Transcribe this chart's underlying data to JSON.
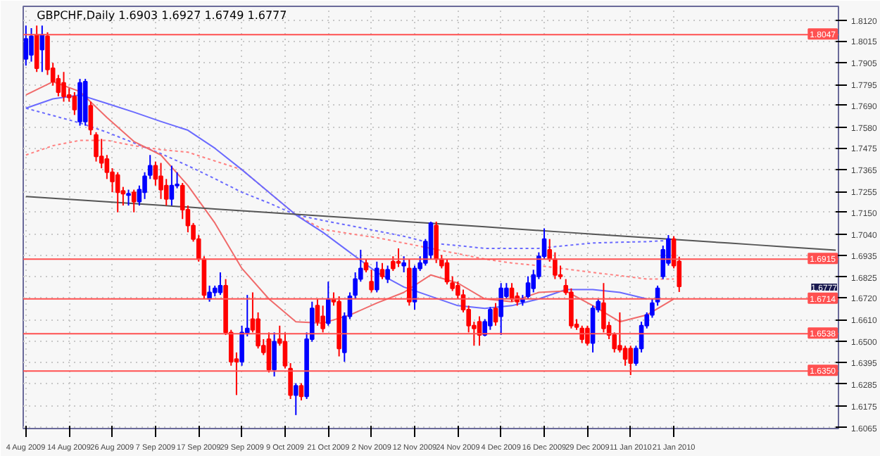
{
  "chart_data": {
    "type": "candlestick",
    "title": "GBPCHF,Daily  1.6903 1.6927 1.6749 1.6777",
    "categories": [
      "4 Aug 2009",
      null,
      null,
      null,
      null,
      null,
      null,
      null,
      "14 Aug 2009",
      null,
      null,
      null,
      null,
      null,
      null,
      null,
      "26 Aug 2009",
      null,
      null,
      null,
      null,
      null,
      null,
      null,
      "7 Sep 2009",
      null,
      null,
      null,
      null,
      null,
      null,
      null,
      "17 Sep 2009",
      null,
      null,
      null,
      null,
      null,
      null,
      null,
      "29 Sep 2009",
      null,
      null,
      null,
      null,
      null,
      null,
      null,
      "9 Oct 2009",
      null,
      null,
      null,
      null,
      null,
      null,
      null,
      "21 Oct 2009",
      null,
      null,
      null,
      null,
      null,
      null,
      null,
      "2 Nov 2009",
      null,
      null,
      null,
      null,
      null,
      null,
      null,
      "12 Nov 2009",
      null,
      null,
      null,
      null,
      null,
      null,
      null,
      "24 Nov 2009",
      null,
      null,
      null,
      null,
      null,
      null,
      null,
      "4 Dec 2009",
      null,
      null,
      null,
      null,
      null,
      null,
      null,
      "16 Dec 2009",
      null,
      null,
      null,
      null,
      null,
      null,
      null,
      "29 Dec 2009",
      null,
      null,
      null,
      null,
      null,
      null,
      null,
      "11 Jan 2010",
      null,
      null,
      null,
      null,
      null,
      null,
      null,
      "21 Jan 2010",
      null,
      null,
      null,
      null,
      null,
      null,
      null,
      null,
      null,
      null,
      null,
      null,
      null,
      null,
      null,
      null,
      null,
      null,
      null,
      null,
      null,
      null,
      null,
      null,
      null,
      null,
      null,
      null,
      null,
      null
    ],
    "ylim": [
      1.606,
      1.819
    ],
    "yticks": [
      {
        "value": 1.812,
        "label": "1.8120"
      },
      1.8015,
      1.7905,
      1.7795,
      {
        "value": 1.769,
        "label": "1.7690"
      },
      {
        "value": 1.758,
        "label": "1.7580"
      },
      1.7475,
      1.7365,
      1.7255,
      {
        "value": 1.715,
        "label": "1.7150"
      },
      {
        "value": 1.704,
        "label": "1.7040"
      },
      1.6935,
      1.6825,
      {
        "value": 1.672,
        "label": "1.6720"
      },
      {
        "value": 1.661,
        "label": "1.6610"
      },
      {
        "value": 1.65,
        "label": "1.6500"
      },
      1.6395,
      1.6285,
      1.6175,
      1.6065
    ],
    "grid": true,
    "series": [
      {
        "type": "line",
        "color": "#ff8080",
        "line_style": "dotted",
        "values": [
          1.744,
          null,
          null,
          null,
          null,
          1.7487,
          null,
          null,
          null,
          null,
          1.7514,
          null,
          null,
          null,
          null,
          1.7514,
          null,
          null,
          null,
          null,
          1.7487,
          null,
          null,
          null,
          null,
          1.7467,
          null,
          null,
          null,
          null,
          1.7454,
          null,
          null,
          null,
          null,
          1.741,
          null,
          null,
          null,
          null,
          1.7366,
          null,
          null,
          null,
          null,
          1.7252,
          null,
          null,
          null,
          null,
          1.7138,
          null,
          null,
          null,
          null,
          1.7065,
          null,
          null,
          null,
          null,
          1.7043,
          null,
          null,
          null,
          null,
          1.7023,
          null,
          null,
          null,
          null,
          1.6996,
          null,
          null,
          null,
          null,
          1.6969,
          null,
          null,
          null,
          null,
          1.6942,
          null,
          null,
          null,
          null,
          1.6915,
          null,
          null,
          null,
          null,
          1.6895,
          null,
          null,
          null,
          null,
          1.6882,
          null,
          null,
          null,
          null,
          1.6865,
          null,
          null,
          null,
          null,
          1.6848,
          null,
          null,
          null,
          null,
          1.6831,
          null,
          null,
          null,
          null,
          1.6814,
          null,
          null,
          null,
          null,
          1.6814,
          null,
          null,
          null,
          null,
          null,
          null,
          null,
          null,
          null,
          null,
          null,
          null,
          null,
          null,
          null,
          null,
          null,
          null,
          null,
          null,
          null,
          null,
          null,
          null,
          null,
          null,
          null,
          null,
          null,
          null
        ]
      },
      {
        "type": "line",
        "color": "#6a6aff",
        "line_style": "dotted",
        "values": [
          1.7676,
          null,
          null,
          null,
          null,
          1.7639,
          null,
          null,
          null,
          null,
          1.7602,
          null,
          null,
          null,
          null,
          1.7555,
          null,
          null,
          null,
          null,
          1.7501,
          null,
          null,
          null,
          null,
          1.7447,
          null,
          null,
          null,
          null,
          1.7386,
          null,
          null,
          null,
          null,
          1.732,
          null,
          null,
          null,
          null,
          1.7252,
          null,
          null,
          null,
          null,
          1.7198,
          null,
          null,
          null,
          null,
          1.7138,
          null,
          null,
          null,
          null,
          1.711,
          null,
          null,
          null,
          null,
          1.7084,
          null,
          null,
          null,
          null,
          1.7057,
          null,
          null,
          null,
          null,
          1.703,
          null,
          null,
          null,
          null,
          1.6996,
          null,
          null,
          null,
          null,
          1.6983,
          null,
          null,
          null,
          null,
          1.6969,
          null,
          null,
          null,
          null,
          1.6969,
          null,
          null,
          null,
          null,
          1.6969,
          null,
          null,
          null,
          null,
          1.6983,
          null,
          null,
          null,
          null,
          1.6996,
          null,
          null,
          null,
          null,
          1.7,
          null,
          null,
          null,
          null,
          1.7003,
          null,
          null,
          null,
          null,
          1.701,
          null,
          null,
          null,
          null,
          null,
          null,
          null,
          null,
          null,
          null,
          null,
          null,
          null,
          null,
          null,
          null,
          null,
          null,
          null,
          null,
          null,
          null,
          null,
          null,
          null,
          null,
          null,
          null,
          null,
          null
        ]
      },
      {
        "type": "line",
        "color": "#6a6aff",
        "line_style": "solid",
        "values": [
          1.7676,
          null,
          null,
          null,
          null,
          1.7723,
          null,
          null,
          null,
          null,
          1.7743,
          null,
          null,
          null,
          null,
          1.77,
          null,
          null,
          null,
          null,
          1.7656,
          null,
          null,
          null,
          null,
          1.7609,
          null,
          null,
          null,
          null,
          1.7565,
          null,
          null,
          null,
          null,
          1.7474,
          null,
          null,
          null,
          null,
          1.7366,
          null,
          null,
          null,
          null,
          1.7252,
          null,
          null,
          null,
          null,
          1.7138,
          null,
          null,
          null,
          null,
          1.705,
          null,
          null,
          null,
          null,
          1.6949,
          null,
          null,
          null,
          null,
          1.6848,
          null,
          null,
          null,
          null,
          1.6774,
          null,
          null,
          null,
          null,
          1.6727,
          null,
          null,
          null,
          null,
          1.668,
          null,
          null,
          null,
          null,
          1.6666,
          null,
          null,
          null,
          null,
          1.668,
          null,
          null,
          null,
          null,
          1.6714,
          null,
          null,
          null,
          null,
          1.6761,
          null,
          null,
          null,
          null,
          1.6761,
          null,
          null,
          null,
          null,
          1.6747,
          null,
          null,
          null,
          null,
          1.6714,
          null,
          null,
          null,
          null,
          null,
          null,
          null,
          null,
          null,
          null,
          null,
          null,
          null,
          null,
          null,
          null,
          null,
          null,
          null,
          null,
          null,
          null,
          null,
          null,
          null,
          null,
          null,
          null,
          null,
          null,
          null,
          null,
          null,
          null,
          null
        ]
      },
      {
        "type": "line",
        "color": "#f06a6a",
        "line_style": "solid",
        "values": [
          1.7743,
          null,
          null,
          null,
          null,
          1.781,
          null,
          null,
          null,
          null,
          1.776,
          null,
          null,
          null,
          null,
          1.7629,
          null,
          null,
          null,
          null,
          1.7508,
          null,
          null,
          null,
          null,
          1.744,
          null,
          null,
          null,
          null,
          1.7286,
          null,
          null,
          null,
          null,
          1.7097,
          null,
          null,
          null,
          null,
          1.6868,
          null,
          null,
          null,
          null,
          1.6714,
          null,
          null,
          null,
          null,
          1.6599,
          null,
          null,
          null,
          null,
          1.6592,
          null,
          null,
          null,
          null,
          1.6633,
          null,
          null,
          null,
          null,
          1.6693,
          null,
          null,
          null,
          null,
          1.6747,
          null,
          null,
          null,
          null,
          1.6835,
          null,
          null,
          null,
          null,
          1.6794,
          null,
          null,
          null,
          null,
          1.6714,
          null,
          null,
          null,
          null,
          1.67,
          null,
          null,
          null,
          null,
          1.6747,
          null,
          null,
          null,
          null,
          1.6754,
          null,
          null,
          null,
          null,
          1.668,
          null,
          null,
          null,
          null,
          1.6599,
          null,
          null,
          null,
          null,
          1.6633,
          null,
          null,
          null,
          null,
          1.6714,
          null,
          null,
          null,
          null,
          null,
          null,
          null,
          null,
          null,
          null,
          null,
          null,
          null,
          null,
          null,
          null,
          null,
          null,
          null,
          null,
          null,
          null,
          null,
          null,
          null,
          null,
          null,
          null,
          null,
          null
        ]
      },
      {
        "type": "line",
        "color": "#555555",
        "line_style": "solid",
        "values": [
          1.7231,
          null,
          null,
          null,
          null,
          1.7222,
          null,
          null,
          null,
          null,
          1.7213,
          null,
          null,
          null,
          null,
          1.7204,
          null,
          null,
          null,
          null,
          1.7195,
          null,
          null,
          null,
          null,
          1.7186,
          null,
          null,
          null,
          null,
          1.7177,
          null,
          null,
          null,
          null,
          1.7168,
          null,
          null,
          null,
          null,
          1.7159,
          null,
          null,
          null,
          null,
          1.715,
          null,
          null,
          null,
          null,
          1.7141,
          null,
          null,
          null,
          null,
          1.7132,
          null,
          null,
          null,
          null,
          1.7123,
          null,
          null,
          null,
          null,
          1.7114,
          null,
          null,
          null,
          null,
          1.7105,
          null,
          null,
          null,
          null,
          1.7096,
          null,
          null,
          null,
          null,
          1.7087,
          null,
          null,
          null,
          null,
          1.7078,
          null,
          null,
          null,
          null,
          1.7068,
          null,
          null,
          null,
          null,
          1.7059,
          null,
          null,
          null,
          null,
          1.705,
          null,
          null,
          null,
          null,
          1.7041,
          null,
          null,
          null,
          null,
          1.7032,
          null,
          null,
          null,
          null,
          1.7023,
          null,
          null,
          null,
          null,
          1.7014,
          null,
          null,
          null,
          null,
          1.7005,
          null,
          null,
          null,
          null,
          1.6996,
          null,
          null,
          null,
          null,
          1.6987,
          null,
          null,
          null,
          null,
          1.6978,
          null,
          null,
          null,
          null,
          1.6969,
          null,
          null,
          null,
          null,
          1.696
        ]
      },
      {
        "type": "candlestick",
        "colors": [
          "#0000ff",
          "#0000ff",
          "#ff0000",
          "#0000ff",
          "#ff0000",
          "#ff0000",
          "#ff0000",
          "#ff0000",
          "#ff0000",
          "#ff0000",
          "#0000ff",
          "#0000ff",
          "#ff0000",
          "#ff0000",
          "#ff0000",
          "#ff0000",
          "#ff0000",
          "#ff0000",
          "#ff0000",
          "#0000ff",
          "#ff0000",
          "#0000ff",
          "#0000ff",
          "#0000ff",
          "#ff0000",
          "#ff0000",
          "#ff0000",
          "#0000ff",
          "#0000ff",
          "#ff0000",
          "#ff0000",
          "#ff0000",
          "#ff0000",
          "#ff0000",
          "#0000ff",
          "#0000ff",
          "#0000ff",
          "#ff0000",
          "#ff0000",
          "#ff0000",
          "#0000ff",
          "#0000ff",
          "#ff0000",
          "#ff0000",
          "#ff0000",
          "#ff0000",
          "#0000ff",
          "#ff0000",
          "#ff0000",
          "#ff0000",
          "#0000ff",
          "#ff0000",
          "#0000ff",
          "#0000ff",
          "#ff0000",
          "#ff0000",
          "#0000ff",
          "#ff0000",
          "#ff0000",
          "#0000ff",
          "#0000ff",
          "#0000ff",
          "#0000ff",
          "#ff0000",
          "#ff0000",
          "#0000ff",
          "#ff0000",
          "#0000ff",
          "#ff0000",
          "#ff0000",
          "#0000ff",
          "#ff0000",
          "#0000ff",
          "#0000ff",
          "#0000ff",
          "#0000ff",
          "#ff0000",
          "#ff0000",
          "#ff0000",
          "#ff0000",
          "#ff0000",
          "#ff0000",
          "#ff0000",
          "#ff0000",
          "#ff0000",
          "#0000ff",
          "#0000ff",
          "#ff0000",
          "#0000ff",
          "#0000ff",
          "#ff0000",
          "#ff0000",
          "#0000ff",
          "#0000ff",
          "#0000ff",
          "#0000ff",
          "#0000ff",
          "#ff0000",
          "#ff0000",
          "#ff0000",
          "#ff0000",
          "#ff0000",
          "#ff0000",
          "#ff0000",
          "#ff0000",
          "#0000ff",
          "#0000ff",
          "#ff0000",
          "#ff0000",
          "#ff0000",
          "#ff0000",
          "#ff0000",
          "#ff0000",
          "#0000ff",
          "#0000ff",
          "#0000ff",
          "#0000ff",
          "#0000ff",
          "#0000ff",
          "#0000ff",
          "#ff0000",
          "#ff0000",
          null,
          null,
          null,
          null,
          null,
          null,
          null,
          null,
          null,
          null,
          null,
          null,
          null,
          null,
          null,
          null,
          null,
          null,
          null,
          null,
          null,
          null,
          null,
          null,
          null,
          null,
          null,
          null,
          null
        ],
        "ohlc": [
          [
            1.7925,
            1.8093,
            1.7891,
            1.8026
          ],
          [
            1.7945,
            1.808,
            1.7911,
            1.8039
          ],
          [
            1.8046,
            1.8093,
            1.7859,
            1.7878
          ],
          [
            1.7972,
            1.8093,
            1.7859,
            1.8046
          ],
          [
            1.8039,
            1.8059,
            1.7844,
            1.7871
          ],
          [
            1.7878,
            1.7905,
            1.779,
            1.781
          ],
          [
            1.7824,
            1.7844,
            1.7736,
            1.7757
          ],
          [
            1.7804,
            1.7859,
            1.7709,
            1.7736
          ],
          [
            1.7743,
            1.7777,
            1.7709,
            1.773
          ],
          [
            1.7736,
            1.7757,
            1.7642,
            1.7669
          ],
          [
            1.7609,
            1.7824,
            1.7588,
            1.7804
          ],
          [
            1.7609,
            1.7824,
            1.7588,
            1.781
          ],
          [
            1.7689,
            1.7709,
            1.7541,
            1.7568
          ],
          [
            1.7541,
            1.7555,
            1.7407,
            1.7433
          ],
          [
            1.7433,
            1.7521,
            1.7373,
            1.74
          ],
          [
            1.742,
            1.744,
            1.7319,
            1.7353
          ],
          [
            1.7353,
            1.7373,
            1.7252,
            1.7306
          ],
          [
            1.7339,
            1.7353,
            1.7151,
            1.7252
          ],
          [
            1.7259,
            1.7279,
            1.7185,
            1.7245
          ],
          [
            1.7238,
            1.7265,
            1.7185,
            1.7245
          ],
          [
            1.7252,
            1.7265,
            1.7151,
            1.7205
          ],
          [
            1.7205,
            1.7286,
            1.7185,
            1.7265
          ],
          [
            1.7252,
            1.7353,
            1.7218,
            1.7333
          ],
          [
            1.7339,
            1.744,
            1.7319,
            1.7386
          ],
          [
            1.7386,
            1.7407,
            1.7286,
            1.7319
          ],
          [
            1.7333,
            1.74,
            1.7218,
            1.7265
          ],
          [
            1.7286,
            1.7319,
            1.7185,
            1.7218
          ],
          [
            1.7218,
            1.7386,
            1.7185,
            1.7286
          ],
          [
            1.7286,
            1.7353,
            1.7272,
            1.7292
          ],
          [
            1.7286,
            1.7299,
            1.7117,
            1.7164
          ],
          [
            1.7164,
            1.7185,
            1.705,
            1.7084
          ],
          [
            1.7084,
            1.7097,
            1.7003,
            1.7016
          ],
          [
            1.7016,
            1.7036,
            1.6902,
            1.6915
          ],
          [
            1.6915,
            1.6929,
            1.6714,
            1.6734
          ],
          [
            1.6714,
            1.6781,
            1.67,
            1.6747
          ],
          [
            1.6747,
            1.6781,
            1.6727,
            1.6767
          ],
          [
            1.6747,
            1.6848,
            1.6734,
            1.6781
          ],
          [
            1.6781,
            1.6814,
            1.6532,
            1.6545
          ],
          [
            1.6545,
            1.6558,
            1.6377,
            1.6397
          ],
          [
            1.6411,
            1.6444,
            1.6229,
            1.6397
          ],
          [
            1.6397,
            1.6579,
            1.6377,
            1.6545
          ],
          [
            1.6545,
            1.6734,
            1.6525,
            1.6565
          ],
          [
            1.6612,
            1.6747,
            1.6545,
            1.6558
          ],
          [
            1.6612,
            1.6646,
            1.6464,
            1.6478
          ],
          [
            1.6478,
            1.6511,
            1.6431,
            1.6444
          ],
          [
            1.6511,
            1.6545,
            1.6343,
            1.6357
          ],
          [
            1.6357,
            1.6545,
            1.6323,
            1.6498
          ],
          [
            1.6511,
            1.6579,
            1.6478,
            1.6491
          ],
          [
            1.6498,
            1.6545,
            1.6363,
            1.6377
          ],
          [
            1.6363,
            1.639,
            1.6209,
            1.6229
          ],
          [
            1.6229,
            1.6289,
            1.6128,
            1.6276
          ],
          [
            1.6276,
            1.6289,
            1.6202,
            1.6222
          ],
          [
            1.6222,
            1.6545,
            1.6209,
            1.6511
          ],
          [
            1.6511,
            1.67,
            1.6498,
            1.6666
          ],
          [
            1.668,
            1.6714,
            1.6579,
            1.6599
          ],
          [
            1.6626,
            1.668,
            1.6545,
            1.6565
          ],
          [
            1.6592,
            1.6801,
            1.6579,
            1.6714
          ],
          [
            1.6714,
            1.6747,
            1.668,
            1.67
          ],
          [
            1.67,
            1.6727,
            1.6424,
            1.6464
          ],
          [
            1.6444,
            1.6646,
            1.6397,
            1.6626
          ],
          [
            1.6626,
            1.6747,
            1.6612,
            1.6727
          ],
          [
            1.6734,
            1.6848,
            1.6714,
            1.6814
          ],
          [
            1.6814,
            1.6962,
            1.6801,
            1.6868
          ],
          [
            1.6895,
            1.6915,
            1.6848,
            1.6861
          ],
          [
            1.6801,
            1.6861,
            1.6747,
            1.6761
          ],
          [
            1.6761,
            1.6902,
            1.6747,
            1.6868
          ],
          [
            1.6861,
            1.6895,
            1.6814,
            1.6828
          ],
          [
            1.6814,
            1.6882,
            1.6794,
            1.6861
          ],
          [
            1.6902,
            1.6929,
            1.6855,
            1.6868
          ],
          [
            1.6902,
            1.6969,
            1.6875,
            1.6895
          ],
          [
            1.6882,
            1.6929,
            1.6848,
            1.6895
          ],
          [
            1.6868,
            1.6915,
            1.668,
            1.67
          ],
          [
            1.67,
            1.6882,
            1.666,
            1.6868
          ],
          [
            1.6868,
            1.6929,
            1.6855,
            1.6895
          ],
          [
            1.6895,
            1.7016,
            1.6882,
            1.7003
          ],
          [
            1.6936,
            1.7104,
            1.6915,
            1.7097
          ],
          [
            1.7084,
            1.7104,
            1.6895,
            1.6915
          ],
          [
            1.6915,
            1.6936,
            1.6868,
            1.6882
          ],
          [
            1.6895,
            1.6915,
            1.6787,
            1.6801
          ],
          [
            1.6794,
            1.6828,
            1.6754,
            1.6767
          ],
          [
            1.6781,
            1.6801,
            1.6714,
            1.6734
          ],
          [
            1.6734,
            1.6761,
            1.6646,
            1.666
          ],
          [
            1.666,
            1.668,
            1.6545,
            1.6579
          ],
          [
            1.6579,
            1.6599,
            1.6478,
            1.6565
          ],
          [
            1.6599,
            1.6626,
            1.6478,
            1.6532
          ],
          [
            1.6532,
            1.6612,
            1.6525,
            1.6599
          ],
          [
            1.6579,
            1.6673,
            1.6558,
            1.666
          ],
          [
            1.6666,
            1.6693,
            1.6579,
            1.6599
          ],
          [
            1.6626,
            1.6794,
            1.6532,
            1.6767
          ],
          [
            1.6727,
            1.6794,
            1.6714,
            1.6767
          ],
          [
            1.6767,
            1.6794,
            1.67,
            1.6714
          ],
          [
            1.6727,
            1.6747,
            1.668,
            1.67
          ],
          [
            1.67,
            1.6734,
            1.668,
            1.6714
          ],
          [
            1.6727,
            1.6828,
            1.6714,
            1.6794
          ],
          [
            1.6767,
            1.6861,
            1.6747,
            1.6835
          ],
          [
            1.6828,
            1.6949,
            1.6814,
            1.6929
          ],
          [
            1.6929,
            1.707,
            1.6915,
            1.7016
          ],
          [
            1.6962,
            1.7016,
            1.6902,
            1.6915
          ],
          [
            1.6915,
            1.6949,
            1.6814,
            1.6835
          ],
          [
            1.6835,
            1.6882,
            1.6814,
            1.6828
          ],
          [
            1.6781,
            1.6814,
            1.6734,
            1.6747
          ],
          [
            1.6747,
            1.6767,
            1.6565,
            1.6579
          ],
          [
            1.6585,
            1.6612,
            1.6558,
            1.6572
          ],
          [
            1.6565,
            1.6579,
            1.6491,
            1.6511
          ],
          [
            1.6565,
            1.6579,
            1.6478,
            1.6491
          ],
          [
            1.6491,
            1.668,
            1.6444,
            1.6666
          ],
          [
            1.666,
            1.6714,
            1.6646,
            1.67
          ],
          [
            1.6693,
            1.6794,
            1.6545,
            1.6565
          ],
          [
            1.6579,
            1.6599,
            1.6511,
            1.6532
          ],
          [
            1.6532,
            1.6545,
            1.6444,
            1.6464
          ],
          [
            1.6478,
            1.6646,
            1.6444,
            1.6458
          ],
          [
            1.6464,
            1.6478,
            1.6377,
            1.6411
          ],
          [
            1.6464,
            1.6478,
            1.633,
            1.639
          ],
          [
            1.639,
            1.6478,
            1.6377,
            1.6464
          ],
          [
            1.6464,
            1.6599,
            1.6444,
            1.6579
          ],
          [
            1.6579,
            1.6646,
            1.6565,
            1.6633
          ],
          [
            1.6633,
            1.6714,
            1.6619,
            1.6693
          ],
          [
            1.67,
            1.6781,
            1.668,
            1.6767
          ],
          [
            1.6828,
            1.6983,
            1.6814,
            1.6962
          ],
          [
            1.6895,
            1.7036,
            1.6882,
            1.7016
          ],
          [
            1.7016,
            1.703,
            1.6868,
            1.6882
          ],
          [
            1.6903,
            1.6927,
            1.6749,
            1.6777
          ],
          null,
          null,
          null,
          null,
          null,
          null,
          null,
          null,
          null,
          null,
          null,
          null,
          null,
          null,
          null,
          null,
          null,
          null,
          null,
          null,
          null,
          null,
          null,
          null,
          null,
          null,
          null,
          null,
          null
        ]
      }
    ],
    "ref_lines": [
      {
        "axis": "y",
        "value": 1.8047,
        "label": "1.8047",
        "color": "#ff5050"
      },
      {
        "axis": "y",
        "value": 1.6915,
        "label": "1.6915",
        "color": "#ff5050"
      },
      {
        "axis": "y",
        "value": 1.6714,
        "label": "1.6714",
        "color": "#ff5050"
      },
      {
        "axis": "y",
        "value": 1.6538,
        "label": "1.6538",
        "color": "#ff5050"
      },
      {
        "axis": "y",
        "value": 1.635,
        "label": "1.6350",
        "color": "#ff5050"
      }
    ],
    "annotations": [
      "1.6777"
    ]
  }
}
